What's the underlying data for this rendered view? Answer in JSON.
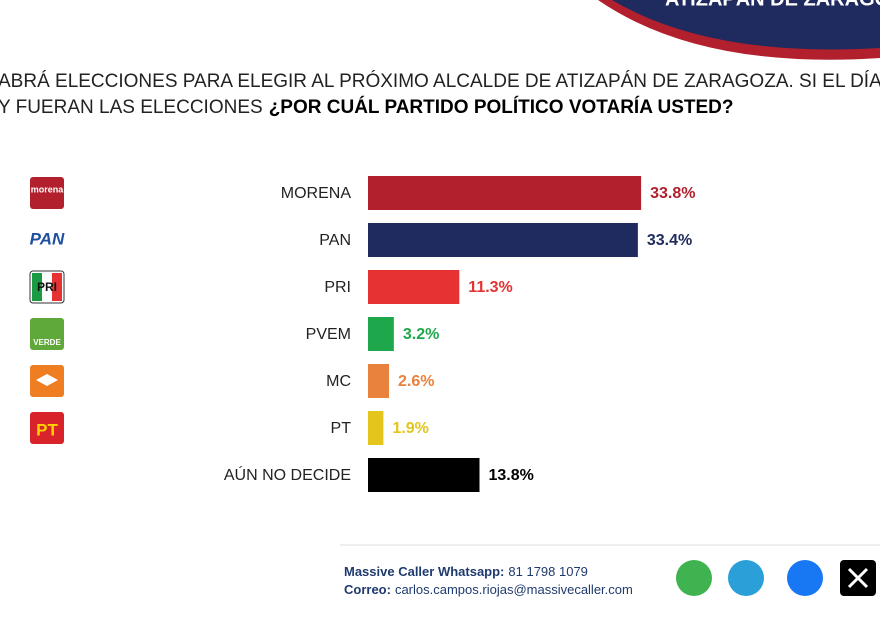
{
  "chart_data": {
    "type": "bar",
    "orientation": "horizontal",
    "banner": "ATIZAPÁN DE ZARAGOZA",
    "title_line1": "ABRÁ ELECCIONES PARA ELEGIR AL PRÓXIMO ALCALDE DE ATIZAPÁN DE ZARAGOZA. SI EL DÍA",
    "title_line2": "Y FUERAN LAS ELECCIONES",
    "title_question": "¿POR CUÁL PARTIDO POLÍTICO VOTARÍA USTED?",
    "categories": [
      "MORENA",
      "PAN",
      "PRI",
      "PVEM",
      "MC",
      "PT",
      "AÚN NO DECIDE"
    ],
    "values": [
      33.8,
      33.4,
      11.3,
      3.2,
      2.6,
      1.9,
      13.8
    ],
    "value_labels": [
      "33.8%",
      "33.4%",
      "11.3%",
      "3.2%",
      "2.6%",
      "1.9%",
      "13.8%"
    ],
    "colors": [
      "#b3202d",
      "#1f2a5e",
      "#e63232",
      "#1ea84b",
      "#e9823c",
      "#e3c51b",
      "#000000"
    ],
    "label_colors": [
      "#b3202d",
      "#1f2a5e",
      "#e63232",
      "#1ea84b",
      "#e9823c",
      "#e3c51b",
      "#000000"
    ]
  },
  "logos": [
    "morena",
    "PAN",
    "PRI",
    "VERDE",
    "PT"
  ],
  "footer": {
    "whatsapp_label": "Massive Caller Whatsapp:",
    "whatsapp_number": "81 1798 1079",
    "email_label": "Correo:",
    "email": "carlos.campos.riojas@massivecaller.com"
  }
}
